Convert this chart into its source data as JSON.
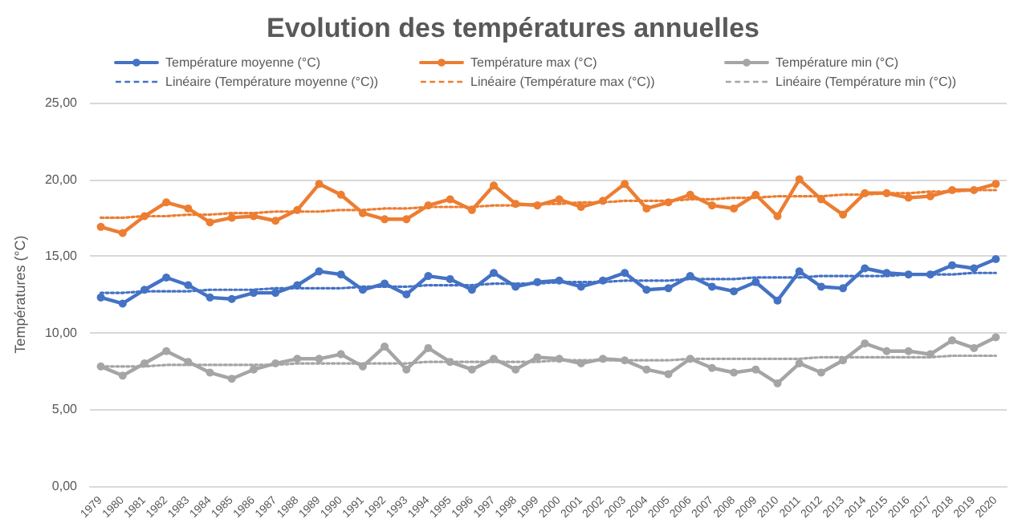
{
  "chart_data": {
    "type": "line",
    "title": "Evolution des températures annuelles",
    "ylabel": "Températures (°C)",
    "categories": [
      "1979",
      "1980",
      "1981",
      "1982",
      "1983",
      "1984",
      "1985",
      "1986",
      "1987",
      "1988",
      "1989",
      "1990",
      "1991",
      "1992",
      "1993",
      "1994",
      "1995",
      "1996",
      "1997",
      "1998",
      "1999",
      "2000",
      "2001",
      "2002",
      "2003",
      "2004",
      "2005",
      "2006",
      "2007",
      "2008",
      "2009",
      "2010",
      "2011",
      "2012",
      "2013",
      "2014",
      "2015",
      "2016",
      "2017",
      "2018",
      "2019",
      "2020"
    ],
    "series": [
      {
        "name": "Température moyenne (°C)",
        "color": "#4472c4",
        "marker": "circle",
        "values": [
          12.3,
          11.9,
          12.8,
          13.6,
          13.1,
          12.3,
          12.2,
          12.6,
          12.6,
          13.1,
          14.0,
          13.8,
          12.8,
          13.2,
          12.5,
          13.7,
          13.5,
          12.8,
          13.9,
          13.0,
          13.3,
          13.4,
          13.0,
          13.4,
          13.9,
          12.8,
          12.9,
          13.7,
          13.0,
          12.7,
          13.3,
          12.1,
          14.0,
          13.0,
          12.9,
          14.2,
          13.9,
          13.8,
          13.8,
          14.4,
          14.2,
          14.8
        ]
      },
      {
        "name": "Température max (°C)",
        "color": "#ed7d31",
        "marker": "circle",
        "values": [
          16.9,
          16.5,
          17.6,
          18.5,
          18.1,
          17.2,
          17.5,
          17.6,
          17.3,
          18.0,
          19.7,
          19.0,
          17.8,
          17.4,
          17.4,
          18.3,
          18.7,
          18.0,
          19.6,
          18.4,
          18.3,
          18.7,
          18.2,
          18.6,
          19.7,
          18.1,
          18.5,
          19.0,
          18.3,
          18.1,
          19.0,
          17.6,
          20.0,
          18.7,
          17.7,
          19.1,
          19.1,
          18.8,
          18.9,
          19.3,
          19.3,
          19.7
        ]
      },
      {
        "name": "Température min (°C)",
        "color": "#a5a5a5",
        "marker": "circle",
        "values": [
          7.8,
          7.2,
          8.0,
          8.8,
          8.1,
          7.4,
          7.0,
          7.6,
          8.0,
          8.3,
          8.3,
          8.6,
          7.8,
          9.1,
          7.6,
          9.0,
          8.1,
          7.6,
          8.3,
          7.6,
          8.4,
          8.3,
          8.0,
          8.3,
          8.2,
          7.6,
          7.3,
          8.3,
          7.7,
          7.4,
          7.6,
          6.7,
          8.0,
          7.4,
          8.2,
          9.3,
          8.8,
          8.8,
          8.6,
          9.5,
          9.0,
          9.7
        ]
      },
      {
        "name": "Linéaire (Température moyenne (°C))",
        "color": "#4472c4",
        "marker": "none",
        "line_style": "dotted",
        "values": [
          12.6,
          12.6,
          12.7,
          12.7,
          12.7,
          12.8,
          12.8,
          12.8,
          12.9,
          12.9,
          12.9,
          12.9,
          13.0,
          13.0,
          13.0,
          13.1,
          13.1,
          13.1,
          13.2,
          13.2,
          13.2,
          13.3,
          13.3,
          13.3,
          13.4,
          13.4,
          13.4,
          13.5,
          13.5,
          13.5,
          13.6,
          13.6,
          13.6,
          13.7,
          13.7,
          13.7,
          13.7,
          13.8,
          13.8,
          13.8,
          13.9,
          13.9
        ]
      },
      {
        "name": "Linéaire (Température max (°C))",
        "color": "#ed7d31",
        "marker": "none",
        "line_style": "dotted",
        "values": [
          17.5,
          17.5,
          17.6,
          17.6,
          17.7,
          17.7,
          17.8,
          17.8,
          17.9,
          17.9,
          17.9,
          18.0,
          18.0,
          18.1,
          18.1,
          18.2,
          18.2,
          18.2,
          18.3,
          18.3,
          18.4,
          18.4,
          18.5,
          18.5,
          18.6,
          18.6,
          18.6,
          18.7,
          18.7,
          18.8,
          18.8,
          18.9,
          18.9,
          18.9,
          19.0,
          19.0,
          19.1,
          19.1,
          19.2,
          19.2,
          19.3,
          19.3
        ]
      },
      {
        "name": "Linéaire (Température min (°C))",
        "color": "#a5a5a5",
        "marker": "none",
        "line_style": "dotted",
        "values": [
          7.8,
          7.8,
          7.8,
          7.9,
          7.9,
          7.9,
          7.9,
          7.9,
          7.9,
          8.0,
          8.0,
          8.0,
          8.0,
          8.0,
          8.0,
          8.1,
          8.1,
          8.1,
          8.1,
          8.1,
          8.1,
          8.2,
          8.2,
          8.2,
          8.2,
          8.2,
          8.2,
          8.3,
          8.3,
          8.3,
          8.3,
          8.3,
          8.3,
          8.4,
          8.4,
          8.4,
          8.4,
          8.4,
          8.4,
          8.5,
          8.5,
          8.5
        ]
      }
    ],
    "ylim": [
      0,
      25
    ],
    "yticks": [
      {
        "value": 0,
        "label": "0,00"
      },
      {
        "value": 5,
        "label": "5,00"
      },
      {
        "value": 10,
        "label": "10,00"
      },
      {
        "value": 15,
        "label": "15,00"
      },
      {
        "value": 20,
        "label": "20,00"
      },
      {
        "value": 25,
        "label": "25,00"
      }
    ],
    "grid": "y",
    "legend": "top"
  }
}
